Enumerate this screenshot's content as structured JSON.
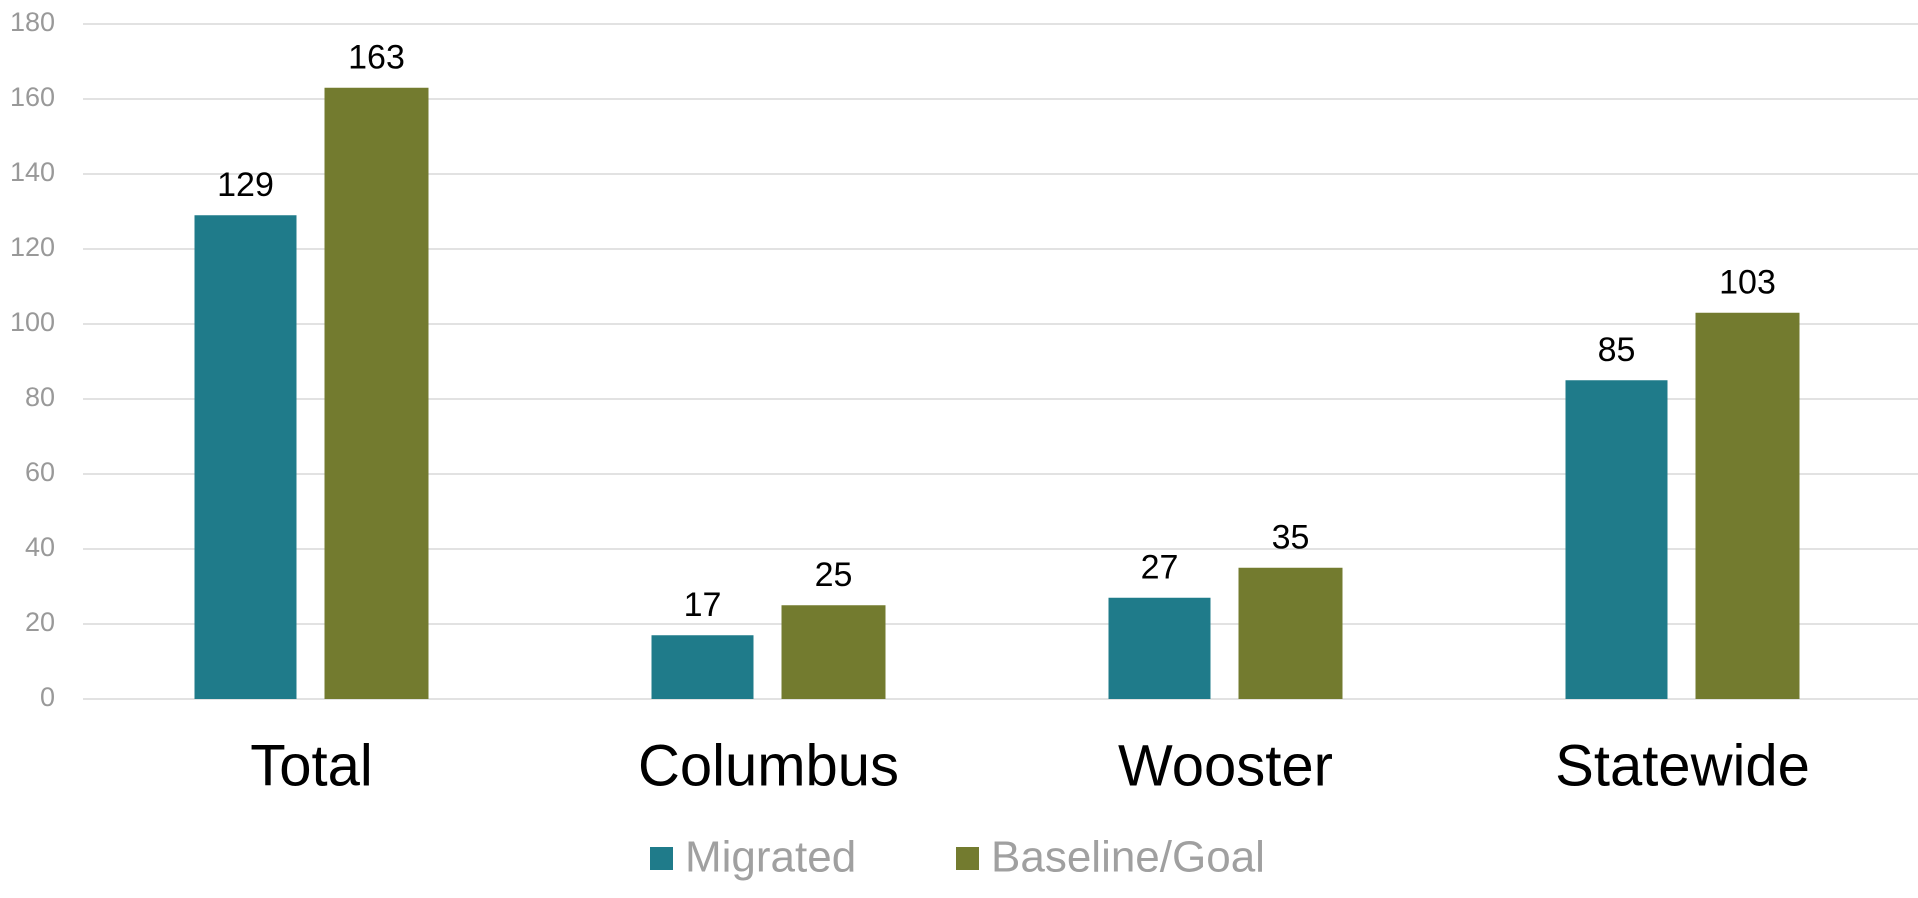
{
  "chart_data": {
    "type": "bar",
    "categories": [
      "Total",
      "Columbus",
      "Wooster",
      "Statewide"
    ],
    "series": [
      {
        "name": "Migrated",
        "color": "#1f7b8a",
        "values": [
          129,
          17,
          27,
          85
        ]
      },
      {
        "name": "Baseline/Goal",
        "color": "#737b2f",
        "values": [
          163,
          25,
          35,
          103
        ]
      }
    ],
    "ylim": [
      0,
      180
    ],
    "yticks": [
      0,
      20,
      40,
      60,
      80,
      100,
      120,
      140,
      160,
      180
    ],
    "grid": true,
    "legend": "bottom"
  }
}
